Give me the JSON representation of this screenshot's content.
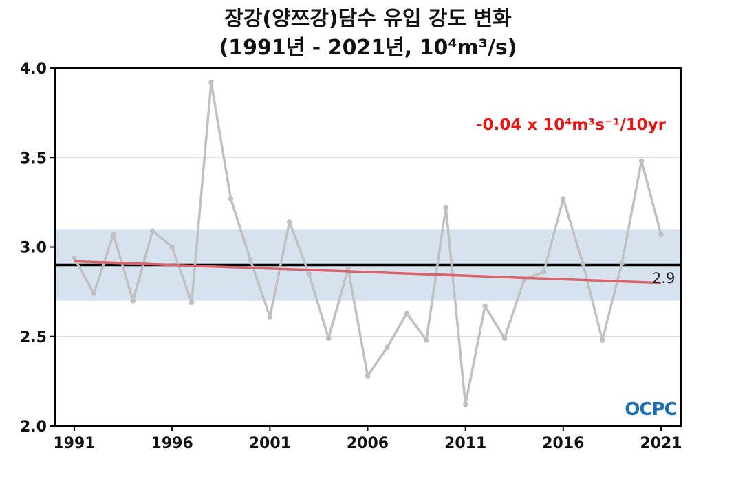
{
  "chart_data": {
    "type": "line",
    "title": "장강(양쯔강)담수 유입 강도 변화",
    "subtitle": "(1991년 - 2021년, 10⁴m³/s)",
    "x": [
      1991,
      1992,
      1993,
      1994,
      1995,
      1996,
      1997,
      1998,
      1999,
      2000,
      2001,
      2002,
      2003,
      2004,
      2005,
      2006,
      2007,
      2008,
      2009,
      2010,
      2011,
      2012,
      2013,
      2014,
      2015,
      2016,
      2017,
      2018,
      2019,
      2020,
      2021
    ],
    "values": [
      2.94,
      2.74,
      3.07,
      2.7,
      3.09,
      3.0,
      2.69,
      3.92,
      3.27,
      2.93,
      2.61,
      3.14,
      2.85,
      2.49,
      2.88,
      2.28,
      2.44,
      2.63,
      2.48,
      3.22,
      2.12,
      2.67,
      2.49,
      2.82,
      2.86,
      3.27,
      2.91,
      2.48,
      2.91,
      3.48,
      3.07
    ],
    "xlim": [
      1990,
      2022
    ],
    "ylim": [
      2.0,
      4.0
    ],
    "xticks": [
      "1991",
      "1996",
      "2001",
      "2006",
      "2011",
      "2016",
      "2021"
    ],
    "yticks": [
      "2.0",
      "2.5",
      "3.0",
      "3.5",
      "4.0"
    ],
    "mean": 2.9,
    "mean_label": "2.9",
    "band": [
      2.7,
      3.1
    ],
    "trend": {
      "start": 2.92,
      "end": 2.8,
      "label": "-0.04 x 10⁴m³s⁻¹/10yr"
    },
    "grid": true,
    "colors": {
      "series": "#c0c0c0",
      "trend": "#d9626b",
      "band": "#d6e3ef",
      "mean": "#000000",
      "trend_label": "#ee1111"
    }
  },
  "logo": "OCPC"
}
